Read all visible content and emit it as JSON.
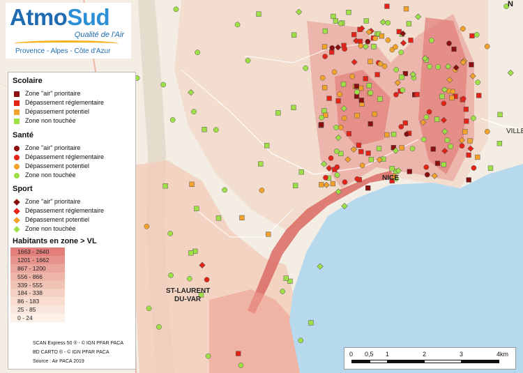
{
  "logo": {
    "brand_atmo": "Atmo",
    "brand_sud": "Sud",
    "tagline": "Qualité de l'Air",
    "region": "Provence - Alpes - Côte d'Azur"
  },
  "colors": {
    "prioritaire": "#8b0f0f",
    "reglementaire": "#e32218",
    "potentiel": "#f2a12b",
    "non_touchee": "#9ee046",
    "sea": "#b7d9ee"
  },
  "legend": {
    "scolaire": {
      "title": "Scolaire",
      "items": [
        "Zone \"air\" prioritaire",
        "Dépassement réglementaire",
        "Dépassement potentiel",
        "Zone non touchée"
      ]
    },
    "sante": {
      "title": "Santé",
      "items": [
        "Zone \"air\" prioritaire",
        "Dépassement réglementaire",
        "Dépassement potentiel",
        "Zone non touchée"
      ]
    },
    "sport": {
      "title": "Sport",
      "items": [
        "Zone \"air\" prioritaire",
        "Dépassement réglementaire",
        "Dépassement potentiel",
        "Zone non touchée"
      ]
    },
    "habitants": {
      "title": "Habitants en zone > VL",
      "classes": [
        "1663 - 2640",
        "1201 - 1662",
        "867 - 1200",
        "556 - 866",
        "339 - 555",
        "184 - 338",
        "86 - 183",
        "25 - 85",
        "0 - 24"
      ],
      "colors": [
        "#e27f7b",
        "#e6938d",
        "#eaa59c",
        "#eeb5a9",
        "#f1c3b5",
        "#f4d0c2",
        "#f7dccf",
        "#f9e6dc",
        "#fcf1e9"
      ]
    },
    "credits": [
      "SCAN Express 50 ® - © IGN PFAR PACA",
      "BD CARTO ® - © IGN PFAR PACA",
      "Source : Air PACA 2019"
    ]
  },
  "scale": {
    "labels": [
      "0",
      "0,5",
      "1",
      "2",
      "3",
      "4km"
    ]
  },
  "map": {
    "north": "N",
    "cities": [
      "NICE",
      "ST-LAURENT",
      "DU-VAR",
      "VILLE"
    ]
  }
}
